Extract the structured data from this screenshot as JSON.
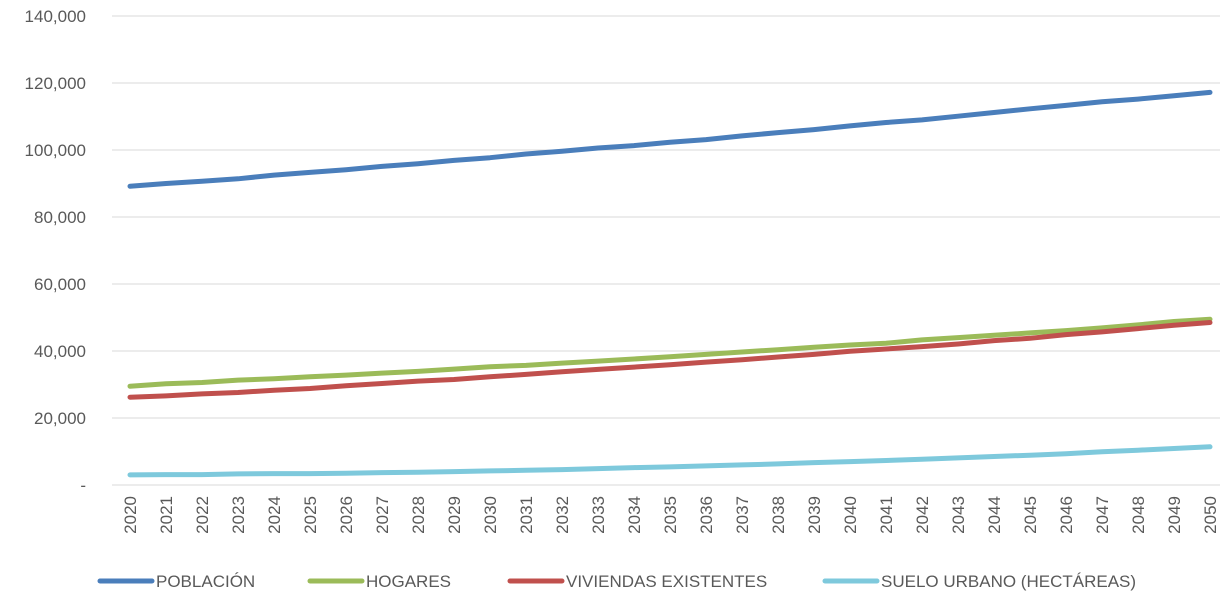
{
  "chart_data": {
    "type": "line",
    "title": "",
    "xlabel": "",
    "ylabel": "",
    "x": [
      "2020",
      "2021",
      "2022",
      "2023",
      "2024",
      "2025",
      "2026",
      "2027",
      "2028",
      "2029",
      "2030",
      "2031",
      "2032",
      "2033",
      "2034",
      "2035",
      "2036",
      "2037",
      "2038",
      "2039",
      "2040",
      "2041",
      "2042",
      "2043",
      "2044",
      "2045",
      "2046",
      "2047",
      "2048",
      "2049",
      "2050"
    ],
    "y_ticks": [
      "-",
      "20,000",
      "40,000",
      "60,000",
      "80,000",
      "100,000",
      "120,000",
      "140,000"
    ],
    "ylim": [
      0,
      140000
    ],
    "grid": true,
    "legend_position": "bottom",
    "series": [
      {
        "name": "POBLACIÓN",
        "color": "#4a7ebb",
        "values": [
          89200,
          90000,
          90700,
          91400,
          92500,
          93300,
          94100,
          95100,
          95900,
          96900,
          97700,
          98800,
          99600,
          100600,
          101300,
          102300,
          103100,
          104200,
          105200,
          106100,
          107200,
          108200,
          109000,
          110100,
          111200,
          112300,
          113300,
          114400,
          115200,
          116200,
          117200
        ]
      },
      {
        "name": "HOGARES",
        "color": "#9bbb59",
        "values": [
          29500,
          30200,
          30600,
          31300,
          31700,
          32300,
          32800,
          33400,
          33900,
          34600,
          35300,
          35700,
          36400,
          37000,
          37600,
          38300,
          39000,
          39700,
          40400,
          41100,
          41800,
          42300,
          43300,
          44000,
          44700,
          45400,
          46100,
          46900,
          47800,
          48800,
          49500
        ]
      },
      {
        "name": "VIVIENDAS EXISTENTES",
        "color": "#c0504d",
        "values": [
          26200,
          26600,
          27200,
          27600,
          28300,
          28800,
          29600,
          30300,
          31000,
          31500,
          32300,
          33000,
          33800,
          34500,
          35200,
          35900,
          36700,
          37400,
          38200,
          39000,
          39900,
          40600,
          41300,
          42100,
          43100,
          43800,
          44900,
          45700,
          46700,
          47700,
          48500
        ]
      },
      {
        "name": "SUELO URBANO (HECTÁREAS)",
        "color": "#7ec9dc",
        "values": [
          3000,
          3100,
          3100,
          3300,
          3400,
          3400,
          3500,
          3700,
          3800,
          4000,
          4200,
          4400,
          4600,
          4900,
          5200,
          5400,
          5700,
          6000,
          6300,
          6700,
          7000,
          7300,
          7700,
          8100,
          8500,
          8900,
          9300,
          9900,
          10400,
          10900,
          11400
        ]
      }
    ]
  }
}
